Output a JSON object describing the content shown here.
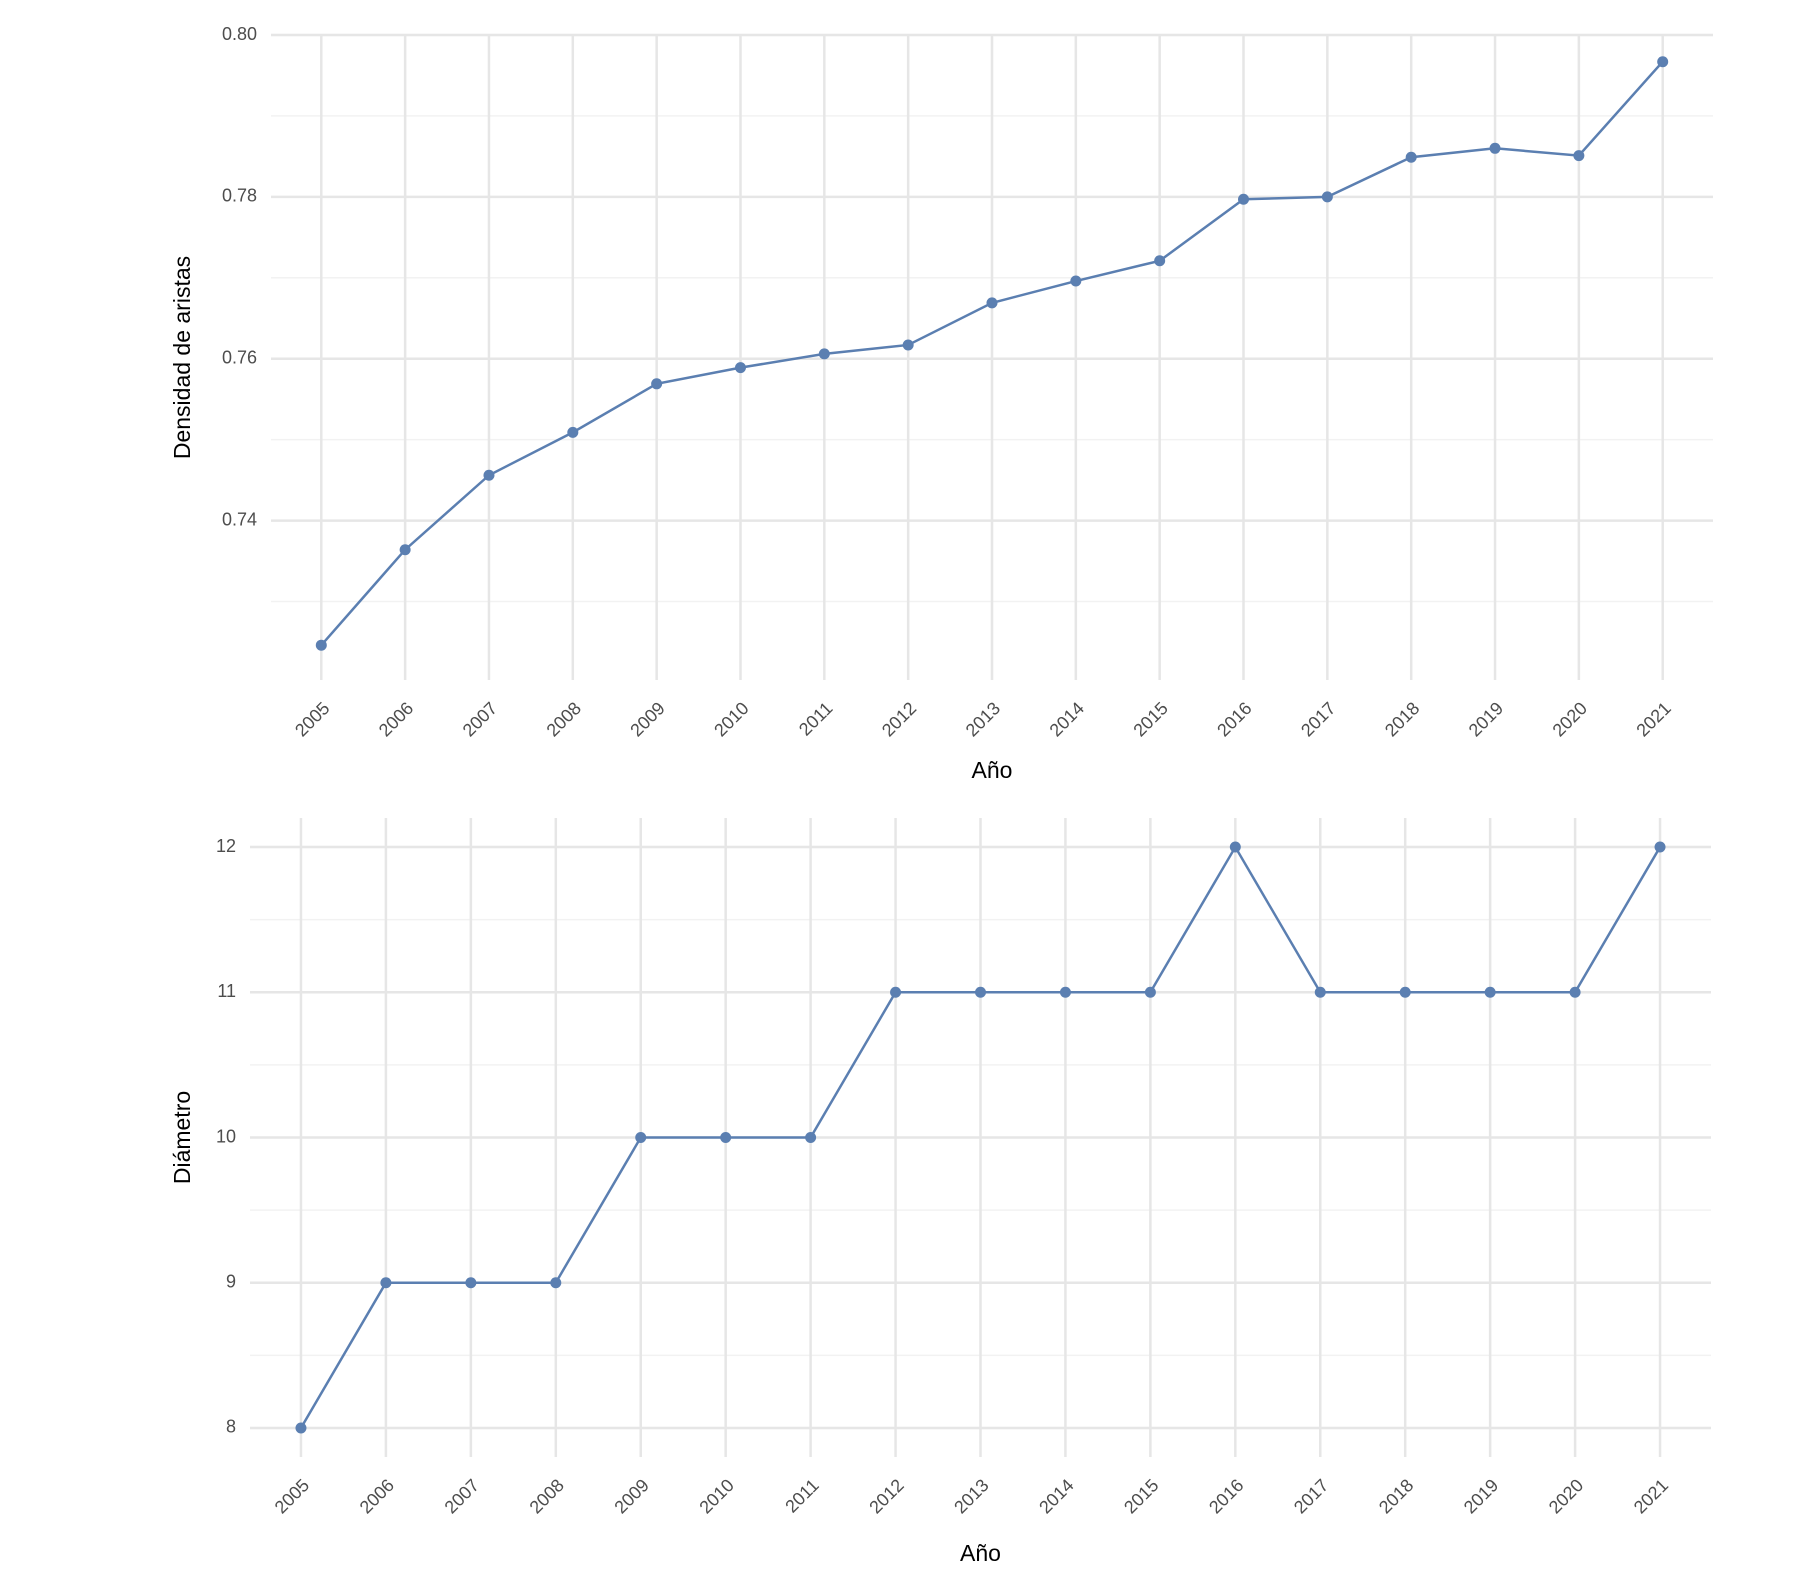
{
  "chart_data": [
    {
      "type": "line",
      "x_label": "Año",
      "y_label": "Densidad de aristas",
      "categories": [
        "2005",
        "2006",
        "2007",
        "2008",
        "2009",
        "2010",
        "2011",
        "2012",
        "2013",
        "2014",
        "2015",
        "2016",
        "2017",
        "2018",
        "2019",
        "2020",
        "2021"
      ],
      "series": [
        {
          "color": "#5b7fb1",
          "values": [
            0.7246,
            0.7364,
            0.7456,
            0.7509,
            0.7569,
            0.7589,
            0.7606,
            0.7617,
            0.7669,
            0.7696,
            0.7721,
            0.7797,
            0.78,
            0.7849,
            0.786,
            0.7851,
            0.7967
          ]
        }
      ],
      "ylim": [
        0.7203,
        0.8
      ],
      "yticks": [
        {
          "value": 0.74,
          "label": "0.74"
        },
        {
          "value": 0.76,
          "label": "0.76"
        },
        {
          "value": 0.78,
          "label": "0.78"
        },
        {
          "value": 0.8,
          "label": "0.80"
        }
      ],
      "grid": true
    },
    {
      "type": "line",
      "x_label": "Año",
      "y_label": "Diámetro",
      "categories": [
        "2005",
        "2006",
        "2007",
        "2008",
        "2009",
        "2010",
        "2011",
        "2012",
        "2013",
        "2014",
        "2015",
        "2016",
        "2017",
        "2018",
        "2019",
        "2020",
        "2021"
      ],
      "series": [
        {
          "color": "#5b7fb1",
          "values": [
            8,
            9,
            9,
            9,
            10,
            10,
            10,
            11,
            11,
            11,
            11,
            12,
            11,
            11,
            11,
            11,
            12
          ]
        }
      ],
      "ylim": [
        7.8,
        12.2
      ],
      "yticks": [
        8,
        9,
        10,
        11,
        12
      ],
      "grid": true
    }
  ]
}
